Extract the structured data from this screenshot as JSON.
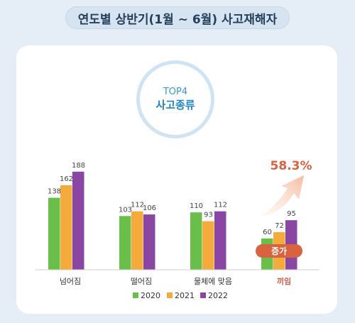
{
  "page": {
    "title": "연도별 상반기(1월 ~ 6월) 사고재해자"
  },
  "badge": {
    "top": "TOP4",
    "main": "사고종류"
  },
  "highlight": {
    "percent": "58.3%",
    "tag": "증가"
  },
  "colors": {
    "2020": "#6abf4b",
    "2021": "#f5ab3c",
    "2022": "#8a46a3",
    "accent": "#d9623f"
  },
  "chart_data": {
    "type": "bar",
    "categories": [
      "넘어짐",
      "떨어짐",
      "물체에 맞음",
      "끼임"
    ],
    "series": [
      {
        "name": "2020",
        "values": [
          138,
          103,
          110,
          60
        ]
      },
      {
        "name": "2021",
        "values": [
          162,
          112,
          93,
          72
        ]
      },
      {
        "name": "2022",
        "values": [
          188,
          106,
          112,
          95
        ]
      }
    ],
    "legend_position": "bottom",
    "grid": false
  }
}
